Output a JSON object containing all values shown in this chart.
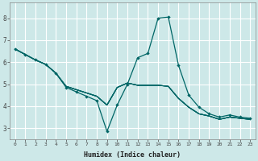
{
  "xlabel": "Humidex (Indice chaleur)",
  "background_color": "#cde8e8",
  "grid_color": "#ffffff",
  "line_color": "#006666",
  "xlim": [
    -0.5,
    23.5
  ],
  "ylim": [
    2.5,
    8.7
  ],
  "xticks": [
    0,
    1,
    2,
    3,
    4,
    5,
    6,
    7,
    8,
    9,
    10,
    11,
    12,
    13,
    14,
    15,
    16,
    17,
    18,
    19,
    20,
    21,
    22,
    23
  ],
  "yticks": [
    3,
    4,
    5,
    6,
    7,
    8
  ],
  "lines": [
    {
      "x": [
        0,
        1,
        2,
        3,
        4,
        5,
        6,
        7,
        8,
        9,
        10,
        11,
        12,
        13,
        14,
        15,
        16,
        17,
        18,
        19,
        20,
        21,
        22,
        23
      ],
      "y": [
        6.6,
        6.35,
        6.1,
        5.9,
        5.5,
        4.85,
        4.65,
        4.45,
        4.25,
        2.85,
        4.05,
        5.0,
        6.2,
        6.4,
        8.0,
        8.05,
        5.85,
        4.5,
        3.95,
        3.65,
        3.5,
        3.6,
        3.5,
        3.45
      ],
      "marker": true
    },
    {
      "x": [
        0,
        1,
        2,
        3,
        4,
        5,
        6,
        7,
        8,
        9,
        10,
        11,
        12,
        13,
        14,
        15,
        16,
        17,
        18,
        19,
        20,
        21,
        22,
        23
      ],
      "y": [
        6.6,
        6.35,
        6.1,
        5.9,
        5.5,
        4.9,
        4.75,
        4.6,
        4.45,
        4.05,
        4.85,
        5.05,
        4.95,
        4.95,
        4.95,
        4.9,
        4.35,
        3.95,
        3.65,
        3.55,
        3.4,
        3.5,
        3.45,
        3.4
      ],
      "marker": false
    },
    {
      "x": [
        0,
        1,
        2,
        3,
        4,
        5,
        6,
        7,
        8,
        9,
        10,
        11,
        12,
        13,
        14,
        15,
        16,
        17,
        18,
        19,
        20,
        21,
        22,
        23
      ],
      "y": [
        6.6,
        6.35,
        6.1,
        5.9,
        5.5,
        4.9,
        4.75,
        4.6,
        4.45,
        4.05,
        4.85,
        5.05,
        4.95,
        4.95,
        4.95,
        4.9,
        4.35,
        3.95,
        3.65,
        3.55,
        3.4,
        3.5,
        3.45,
        3.4
      ],
      "marker": false
    },
    {
      "x": [
        0,
        1,
        2,
        3,
        4,
        5,
        6,
        7,
        8,
        9,
        10,
        11,
        12,
        13,
        14,
        15,
        16,
        17,
        18,
        19,
        20,
        21,
        22,
        23
      ],
      "y": [
        6.6,
        6.35,
        6.1,
        5.9,
        5.5,
        4.9,
        4.75,
        4.6,
        4.45,
        4.05,
        4.85,
        5.05,
        4.95,
        4.95,
        4.95,
        4.9,
        4.35,
        3.95,
        3.65,
        3.55,
        3.4,
        3.5,
        3.45,
        3.4
      ],
      "marker": false
    },
    {
      "x": [
        0,
        1,
        2,
        3,
        4,
        5,
        6,
        7,
        8,
        9,
        10,
        11,
        12,
        13,
        14,
        15,
        16,
        17,
        18,
        19,
        20,
        21,
        22,
        23
      ],
      "y": [
        6.6,
        6.35,
        6.1,
        5.9,
        5.5,
        4.9,
        4.75,
        4.6,
        4.45,
        4.05,
        4.85,
        5.05,
        4.95,
        4.95,
        4.95,
        4.9,
        4.35,
        3.95,
        3.65,
        3.55,
        3.4,
        3.5,
        3.45,
        3.4
      ],
      "marker": false
    }
  ]
}
